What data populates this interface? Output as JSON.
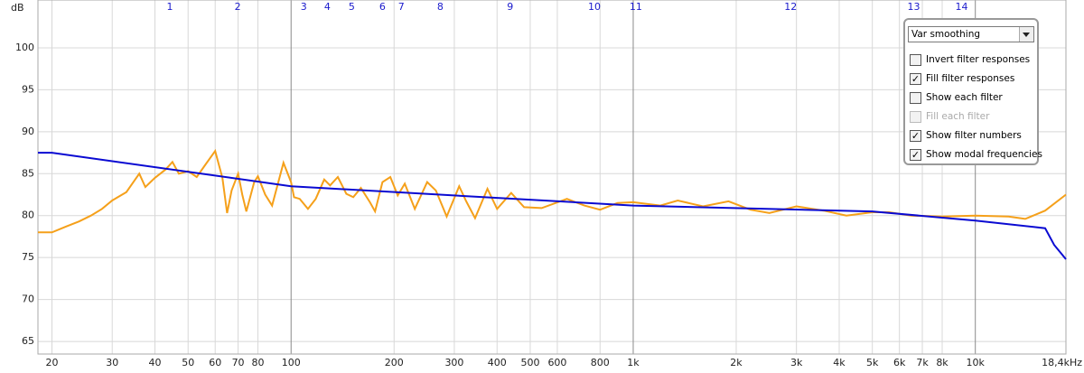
{
  "chart_data": {
    "type": "line",
    "y_unit": "dB",
    "xscale": "log",
    "xlim": [
      18.2,
      18400
    ],
    "ylim": [
      63.5,
      105.7
    ],
    "yticks": [
      65,
      70,
      75,
      80,
      85,
      90,
      95,
      100
    ],
    "xticks": [
      20,
      30,
      40,
      50,
      60,
      70,
      80,
      100,
      200,
      300,
      400,
      500,
      600,
      800,
      {
        "value": 1000,
        "label": "1k"
      },
      {
        "value": 2000,
        "label": "2k"
      },
      {
        "value": 3000,
        "label": "3k"
      },
      {
        "value": 4000,
        "label": "4k"
      },
      {
        "value": 5000,
        "label": "5k"
      },
      {
        "value": 6000,
        "label": "6k"
      },
      {
        "value": 7000,
        "label": "7k"
      },
      {
        "value": 8000,
        "label": "8k"
      },
      {
        "value": 10000,
        "label": "10k"
      },
      {
        "value": 18400,
        "label": "18,4kHz"
      }
    ],
    "grid": true,
    "filter_numbers": [
      {
        "label": "1",
        "x": 44.2
      },
      {
        "label": "2",
        "x": 69.8
      },
      {
        "label": "3",
        "x": 108.9
      },
      {
        "label": "4",
        "x": 127.6
      },
      {
        "label": "5",
        "x": 150.4
      },
      {
        "label": "6",
        "x": 185
      },
      {
        "label": "7",
        "x": 210
      },
      {
        "label": "8",
        "x": 273
      },
      {
        "label": "9",
        "x": 437
      },
      {
        "label": "10",
        "x": 770
      },
      {
        "label": "11",
        "x": 1018
      },
      {
        "label": "12",
        "x": 2886
      },
      {
        "label": "13",
        "x": 6607
      },
      {
        "label": "14",
        "x": 9120
      }
    ],
    "filter_number_color": "#1a1acc",
    "series": [
      {
        "color": "#f5a01a",
        "x": [
          18.2,
          20,
          22,
          24,
          26,
          28,
          30,
          33,
          35,
          36,
          37.5,
          40,
          43,
          45,
          47,
          50,
          53,
          56,
          60,
          63,
          65,
          67,
          70,
          72,
          74,
          78,
          80,
          84,
          88,
          95,
          100,
          102,
          106,
          112,
          118,
          125,
          130,
          137,
          145,
          152,
          160,
          170,
          176,
          185,
          195,
          205,
          215,
          230,
          250,
          265,
          285,
          310,
          325,
          345,
          375,
          400,
          440,
          480,
          540,
          640,
          720,
          800,
          900,
          1000,
          1200,
          1350,
          1600,
          1900,
          2200,
          2500,
          3000,
          3600,
          4200,
          5000,
          5600,
          6500,
          8000,
          10000,
          12500,
          14000,
          16000,
          18400
        ],
        "values": [
          78,
          78,
          78.7,
          79.3,
          80,
          80.8,
          81.8,
          82.8,
          84.3,
          85,
          83.4,
          84.5,
          85.5,
          86.4,
          85.0,
          85.3,
          84.6,
          86.0,
          87.7,
          84.5,
          80.3,
          83.0,
          85.0,
          82.5,
          80.5,
          84.0,
          84.7,
          82.5,
          81.2,
          86.3,
          84,
          82.2,
          82.0,
          80.8,
          82.0,
          84.3,
          83.6,
          84.6,
          82.6,
          82.2,
          83.3,
          81.6,
          80.5,
          84.0,
          84.6,
          82.4,
          83.8,
          80.8,
          84.0,
          83.0,
          79.9,
          83.5,
          81.7,
          79.7,
          83.2,
          80.8,
          82.7,
          81.0,
          80.9,
          82.0,
          81.2,
          80.7,
          81.5,
          81.6,
          81.2,
          81.8,
          81.1,
          81.7,
          80.7,
          80.3,
          81.1,
          80.6,
          80.0,
          80.4,
          80.4,
          80.0,
          79.9,
          80.0,
          79.9,
          79.6,
          80.6,
          82.5
        ]
      },
      {
        "color": "#0a0ad2",
        "x": [
          18.2,
          20,
          100,
          1000,
          5000,
          10000,
          16000,
          17000,
          18400
        ],
        "values": [
          87.5,
          87.5,
          83.5,
          81.2,
          80.5,
          79.4,
          78.5,
          76.5,
          74.8
        ]
      }
    ]
  },
  "controls": {
    "dropdown": "Var smoothing",
    "checkboxes": [
      {
        "label": "Invert filter responses",
        "checked": false,
        "disabled": false
      },
      {
        "label": "Fill filter responses",
        "checked": true,
        "disabled": false
      },
      {
        "label": "Show each filter",
        "checked": false,
        "disabled": false
      },
      {
        "label": "Fill each filter",
        "checked": false,
        "disabled": true
      },
      {
        "label": "Show filter numbers",
        "checked": true,
        "disabled": false
      },
      {
        "label": "Show modal frequencies",
        "checked": true,
        "disabled": false
      }
    ]
  }
}
